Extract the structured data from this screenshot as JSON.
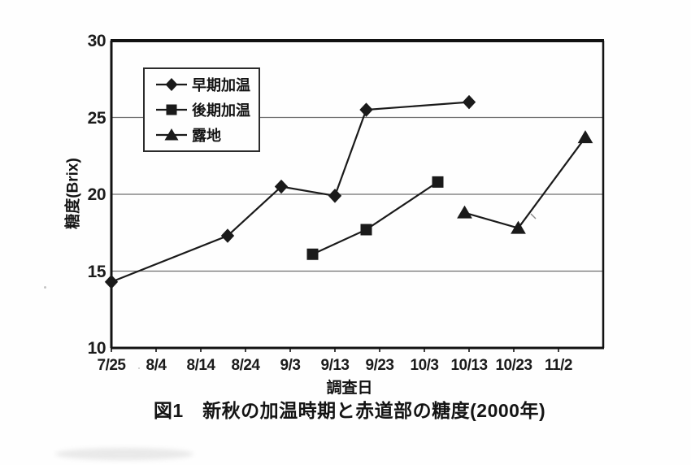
{
  "caption": "図1　新秋の加温時期と赤道部の糖度(2000年)",
  "chart_data": {
    "type": "line",
    "title": "図1 新秋の加温時期と赤道部の糖度(2000年)",
    "xlabel": "調査日",
    "ylabel": "糖度(Brix)",
    "ylim": [
      10,
      30
    ],
    "y_ticks": [
      10,
      15,
      20,
      25,
      30
    ],
    "gridlines_y": [
      15,
      20,
      25
    ],
    "grid": "horizontal",
    "legend_position": "top-left-inside",
    "x_axis": {
      "start_date": "7/25",
      "tick_interval_days": 10,
      "range_days": [
        0,
        110
      ],
      "tick_days": [
        0,
        10,
        20,
        30,
        40,
        50,
        60,
        70,
        80,
        90,
        100
      ],
      "tick_labels": [
        "7/25",
        "8/4",
        "8/14",
        "8/24",
        "9/3",
        "9/13",
        "9/23",
        "10/3",
        "10/13",
        "10/23",
        "11/2"
      ]
    },
    "line_color": "#1a1a1a",
    "series": [
      {
        "id": "early-heating",
        "name": "早期加温",
        "marker": "diamond",
        "points": [
          {
            "date": "7/25",
            "day": 0,
            "value": 14.3
          },
          {
            "date": "8/20",
            "day": 26,
            "value": 17.3
          },
          {
            "date": "9/1",
            "day": 38,
            "value": 20.5
          },
          {
            "date": "9/13",
            "day": 50,
            "value": 19.9
          },
          {
            "date": "9/20",
            "day": 57,
            "value": 25.5
          },
          {
            "date": "10/13",
            "day": 80,
            "value": 26.0
          }
        ]
      },
      {
        "id": "late-heating",
        "name": "後期加温",
        "marker": "square",
        "points": [
          {
            "date": "9/8",
            "day": 45,
            "value": 16.1
          },
          {
            "date": "9/20",
            "day": 57,
            "value": 17.7
          },
          {
            "date": "10/6",
            "day": 73,
            "value": 20.8
          }
        ]
      },
      {
        "id": "open-field",
        "name": "露地",
        "marker": "triangle",
        "points": [
          {
            "date": "10/12",
            "day": 79,
            "value": 18.8
          },
          {
            "date": "10/23",
            "day": 91,
            "value": 17.8
          },
          {
            "date": "11/7",
            "day": 106,
            "value": 23.7
          }
        ]
      }
    ]
  }
}
